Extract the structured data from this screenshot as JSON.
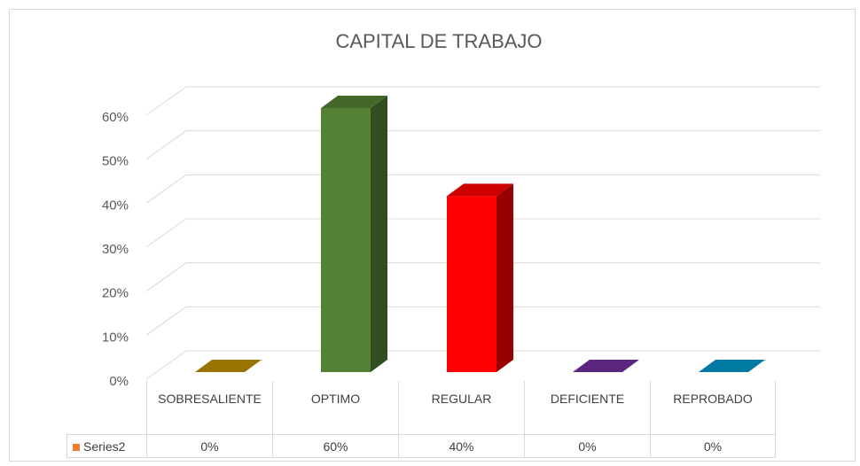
{
  "chart_data": {
    "type": "bar3d",
    "title": "CAPITAL DE TRABAJO",
    "categories": [
      "SOBRESALIENTE",
      "OPTIMO",
      "REGULAR",
      "DEFICIENTE",
      "REPROBADO"
    ],
    "series": [
      {
        "name": "Series2",
        "color": "#ed7d31",
        "values": [
          0,
          60,
          40,
          0,
          0
        ],
        "value_labels": [
          "0%",
          "60%",
          "40%",
          "0%",
          "0%"
        ],
        "colors": [
          "#bf9000",
          "#548235",
          "#ff0000",
          "#7030a0",
          "#0099cc"
        ]
      }
    ],
    "ylim": [
      0,
      60
    ],
    "yticks": [
      {
        "value": 0,
        "label": "0%"
      },
      {
        "value": 10,
        "label": "10%"
      },
      {
        "value": 20,
        "label": "20%"
      },
      {
        "value": 30,
        "label": "30%"
      },
      {
        "value": 40,
        "label": "40%"
      },
      {
        "value": 50,
        "label": "50%"
      },
      {
        "value": 60,
        "label": "60%"
      }
    ],
    "grid": true,
    "data_table": true
  }
}
